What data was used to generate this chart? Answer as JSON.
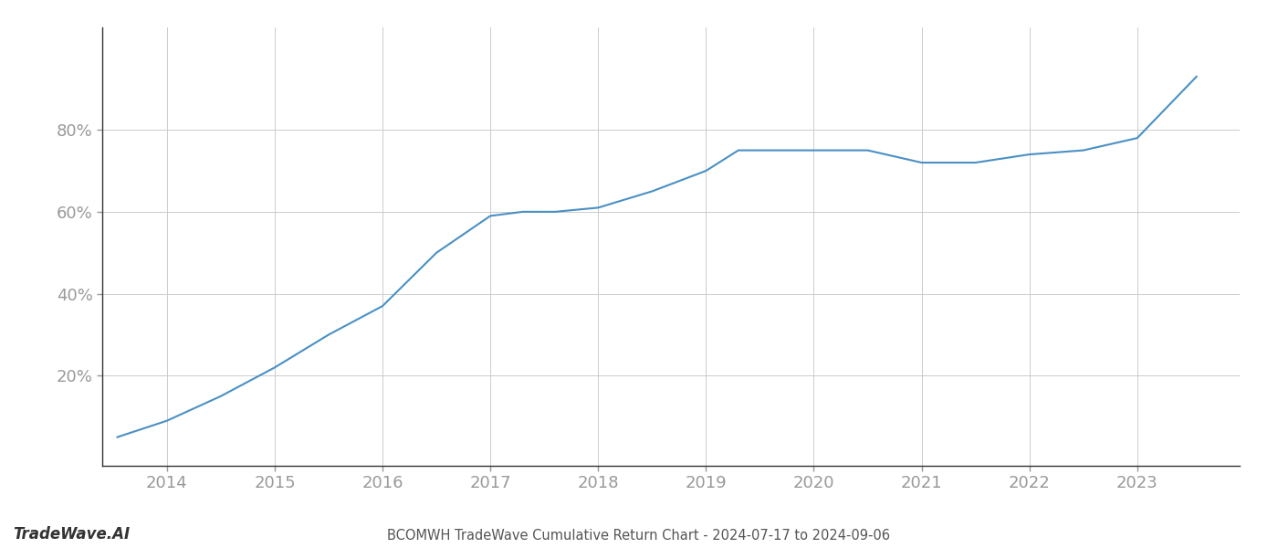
{
  "title": "BCOMWH TradeWave Cumulative Return Chart - 2024-07-17 to 2024-09-06",
  "watermark": "TradeWave.AI",
  "line_color": "#4a90c4",
  "background_color": "#ffffff",
  "grid_color": "#cccccc",
  "x_years": [
    2014,
    2015,
    2016,
    2017,
    2018,
    2019,
    2020,
    2021,
    2022,
    2023
  ],
  "x_values": [
    2013.54,
    2014.0,
    2014.5,
    2015.0,
    2015.5,
    2016.0,
    2016.5,
    2017.0,
    2017.3,
    2017.6,
    2018.0,
    2018.5,
    2019.0,
    2019.3,
    2019.6,
    2020.0,
    2020.5,
    2021.0,
    2021.5,
    2022.0,
    2022.5,
    2023.0,
    2023.55
  ],
  "y_values": [
    5,
    9,
    15,
    22,
    30,
    37,
    50,
    59,
    60,
    60,
    61,
    65,
    70,
    75,
    75,
    75,
    75,
    72,
    72,
    74,
    75,
    78,
    93
  ],
  "yticks": [
    20,
    40,
    60,
    80
  ],
  "xlim": [
    2013.4,
    2023.95
  ],
  "ylim": [
    -2,
    105
  ],
  "title_fontsize": 10.5,
  "tick_fontsize": 13,
  "watermark_fontsize": 12,
  "spine_color": "#333333",
  "tick_color": "#999999",
  "title_color": "#555555"
}
